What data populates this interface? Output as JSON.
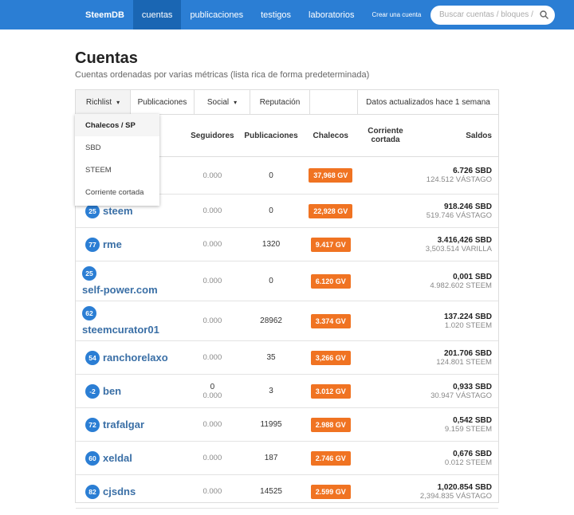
{
  "nav": {
    "brand": "SteemDB",
    "items": [
      "cuentas",
      "publicaciones",
      "testigos",
      "laboratorios",
      "Crear una cuenta"
    ],
    "search_placeholder": "Buscar cuentas / bloques /"
  },
  "header": {
    "title": "Cuentas",
    "subtitle": "Cuentas ordenadas por varias métricas (lista rica de forma predeterminada)"
  },
  "tabs": [
    "Richlist",
    "Publicaciones",
    "Social",
    "Reputación"
  ],
  "updated": "Datos actualizados hace 1 semana",
  "dropdown": [
    "Chalecos / SP",
    "SBD",
    "STEEM",
    "Corriente cortada"
  ],
  "table": {
    "columns": [
      "Seguidores",
      "Publicaciones",
      "Chalecos",
      "Corriente cortada",
      "Saldos"
    ],
    "rows": [
      {
        "followers": "0.000",
        "posts": "0",
        "vests": "37,968 GV",
        "sbd": "6.726 SBD",
        "other": "124.512 VÁSTAGO"
      },
      {
        "rank": "25",
        "name": "steem",
        "followers": "0.000",
        "posts": "0",
        "vests": "22,928 GV",
        "sbd": "918.246 SBD",
        "other": "519.746 VÁSTAGO"
      },
      {
        "rank": "77",
        "name": "rme",
        "followers": "0.000",
        "posts": "1320",
        "vests": "9.417 GV",
        "sbd": "3.416,426 SBD",
        "other": "3,503.514 VARILLA"
      },
      {
        "rank": "25",
        "name": "self-power.com",
        "followers": "0.000",
        "posts": "0",
        "vests": "6.120 GV",
        "sbd": "0,001 SBD",
        "other": "4.982.602 STEEM"
      },
      {
        "rank": "62",
        "name": "steemcurator01",
        "followers": "0.000",
        "posts": "28962",
        "vests": "3.374 GV",
        "sbd": "137.224 SBD",
        "other": "1.020 STEEM"
      },
      {
        "rank": "54",
        "name": "ranchorelaxo",
        "followers": "0.000",
        "posts": "35",
        "vests": "3,266 GV",
        "sbd": "201.706 SBD",
        "other": "124.801 STEEM"
      },
      {
        "rank": "-2",
        "name": "ben",
        "followers_count": "0",
        "followers": "0.000",
        "posts": "3",
        "vests": "3.012 GV",
        "sbd": "0,933 SBD",
        "other": "30.947 VÁSTAGO"
      },
      {
        "rank": "72",
        "name": "trafalgar",
        "followers": "0.000",
        "posts": "11995",
        "vests": "2.988 GV",
        "sbd": "0,542 SBD",
        "other": "9.159 STEEM"
      },
      {
        "rank": "60",
        "name": "xeldal",
        "followers": "0.000",
        "posts": "187",
        "vests": "2.746 GV",
        "sbd": "0,676 SBD",
        "other": "0.012 STEEM"
      },
      {
        "rank": "82",
        "name": "cjsdns",
        "followers": "0.000",
        "posts": "14525",
        "vests": "2.599 GV",
        "sbd": "1,020.854 SBD",
        "other": "2,394.835 VÁSTAGO"
      }
    ]
  }
}
